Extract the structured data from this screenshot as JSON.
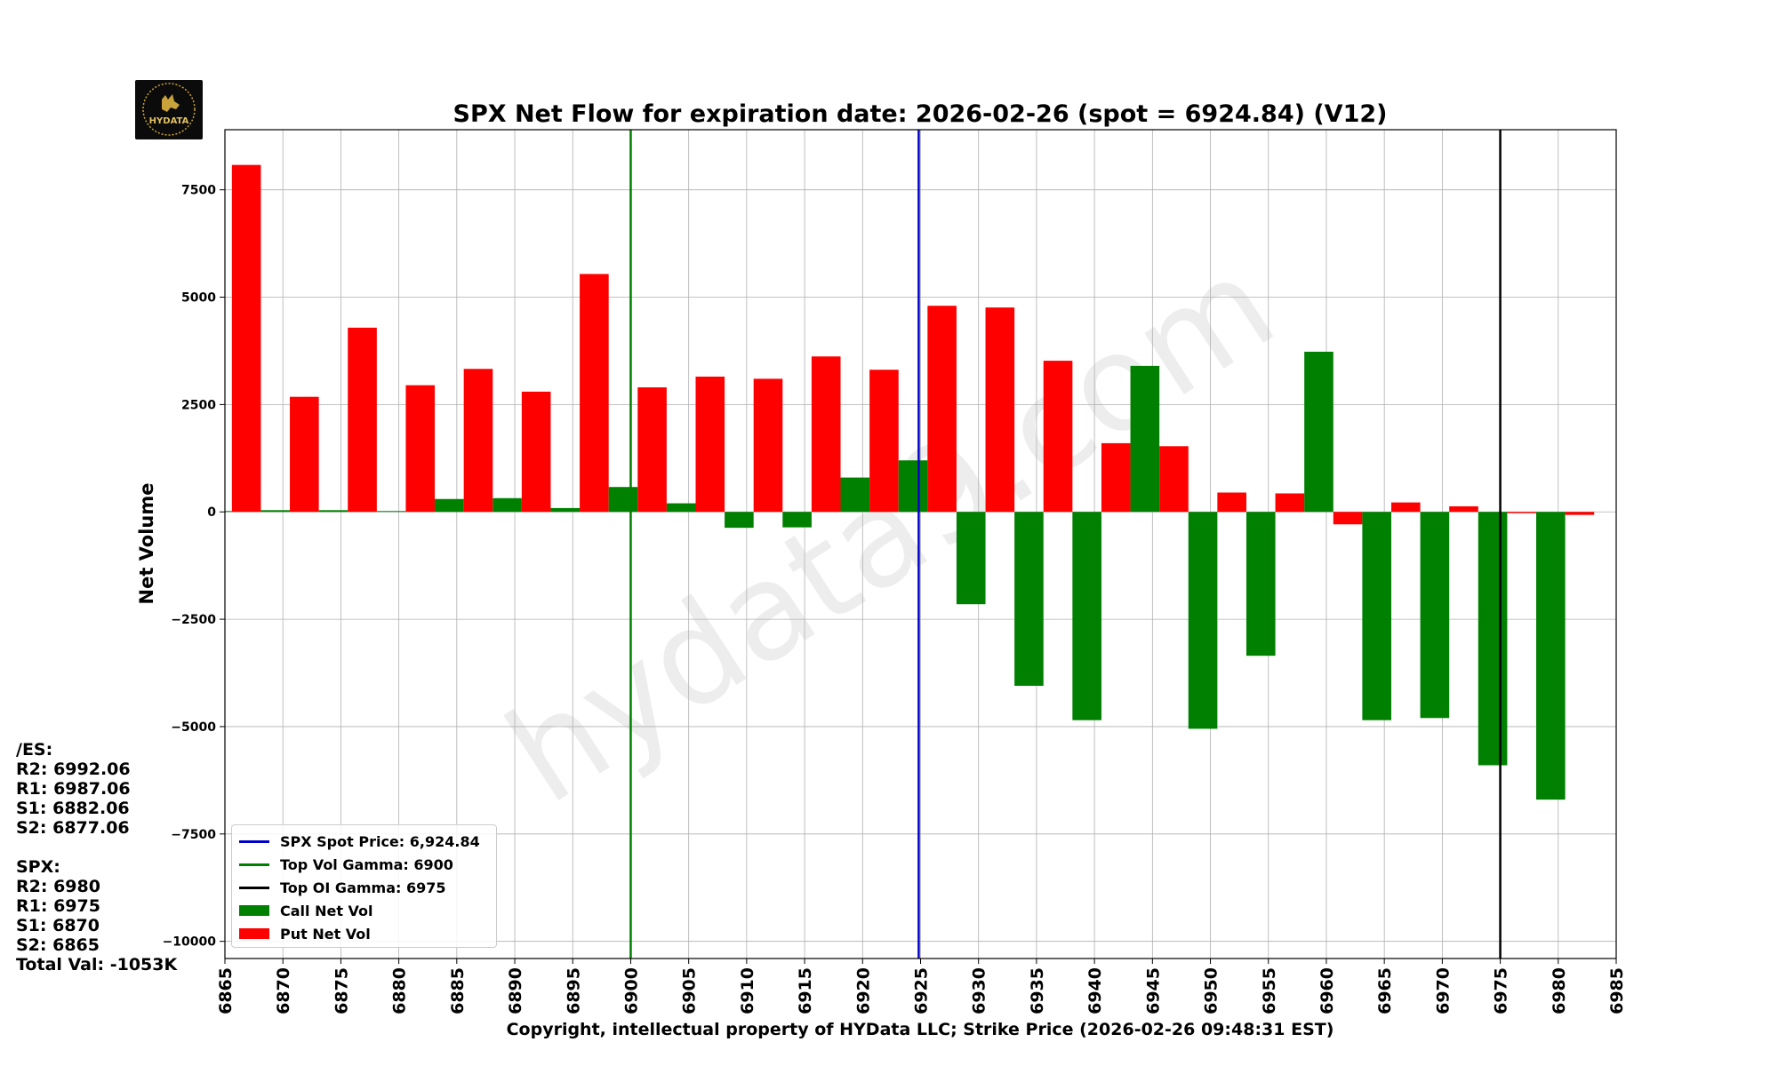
{
  "chart_data": {
    "type": "bar",
    "title": "SPX Net Flow for expiration date: 2026-02-26 (spot = 6924.84) (V12)",
    "xlabel": "Copyright, intellectual property of HYData LLC; Strike Price (2026-02-26 09:48:31 EST)",
    "ylabel": "Net Volume",
    "xlim": [
      6865,
      6985
    ],
    "ylim": [
      -10400,
      8900
    ],
    "x_ticks": [
      "6865",
      "6870",
      "6875",
      "6880",
      "6885",
      "6890",
      "6895",
      "6900",
      "6905",
      "6910",
      "6915",
      "6920",
      "6925",
      "6930",
      "6935",
      "6940",
      "6945",
      "6950",
      "6955",
      "6960",
      "6965",
      "6970",
      "6975",
      "6980",
      "6985"
    ],
    "y_ticks": [
      {
        "value": 7500,
        "label": "7500"
      },
      {
        "value": 5000,
        "label": "5000"
      },
      {
        "value": 2500,
        "label": "2500"
      },
      {
        "value": 0,
        "label": "0"
      },
      {
        "value": -2500,
        "label": "−2500"
      },
      {
        "value": -5000,
        "label": "−5000"
      },
      {
        "value": -7500,
        "label": "−7500"
      },
      {
        "value": -10000,
        "label": "−10000"
      }
    ],
    "strikes": [
      6865,
      6870,
      6875,
      6880,
      6885,
      6890,
      6895,
      6900,
      6905,
      6910,
      6915,
      6920,
      6925,
      6930,
      6935,
      6940,
      6945,
      6950,
      6955,
      6960,
      6965,
      6970,
      6975,
      6980
    ],
    "series": [
      {
        "name": "Call Net Vol",
        "color": "#008000",
        "values": [
          20,
          40,
          40,
          20,
          300,
          320,
          90,
          580,
          200,
          -370,
          -360,
          800,
          1200,
          -2150,
          -4050,
          -4850,
          3400,
          -5050,
          -3350,
          3730,
          -4850,
          -4800,
          -5900,
          -6700
        ]
      },
      {
        "name": "Put Net Vol",
        "color": "#ff0000",
        "values": [
          8080,
          2680,
          4290,
          2950,
          3330,
          2800,
          5540,
          2900,
          3150,
          3100,
          3620,
          3310,
          4800,
          4760,
          3520,
          1600,
          1530,
          450,
          430,
          -290,
          220,
          130,
          -30,
          -70
        ]
      }
    ],
    "vertical_lines": [
      {
        "name": "SPX Spot Price: 6,924.84",
        "x": 6924.84,
        "color": "#0000cc"
      },
      {
        "name": "Top Vol Gamma: 6900",
        "x": 6900,
        "color": "#008000"
      },
      {
        "name": "Top OI Gamma: 6975",
        "x": 6975,
        "color": "#000000"
      }
    ],
    "legend": {
      "position": "lower-left",
      "entries": [
        {
          "label": "SPX Spot Price: 6,924.84",
          "kind": "line",
          "color": "#0000cc"
        },
        {
          "label": "Top Vol Gamma: 6900",
          "kind": "line",
          "color": "#008000"
        },
        {
          "label": "Top OI Gamma: 6975",
          "kind": "line",
          "color": "#000000"
        },
        {
          "label": "Call Net Vol",
          "kind": "patch",
          "color": "#008000"
        },
        {
          "label": "Put Net Vol",
          "kind": "patch",
          "color": "#ff0000"
        }
      ]
    },
    "grid": true,
    "watermark": "hydata9.com"
  },
  "side_panel": {
    "es_header": "/ES:",
    "es_levels": [
      "R2: 6992.06",
      "R1: 6987.06",
      "S1: 6882.06",
      "S2: 6877.06"
    ],
    "spx_header": "SPX:",
    "spx_levels": [
      "R2: 6980",
      "R1: 6975",
      "S1: 6870",
      "S2: 6865"
    ],
    "total_val": "Total Val: -1053K"
  },
  "logo": {
    "text": "HYDATA",
    "icon": "bull-logo-icon"
  }
}
